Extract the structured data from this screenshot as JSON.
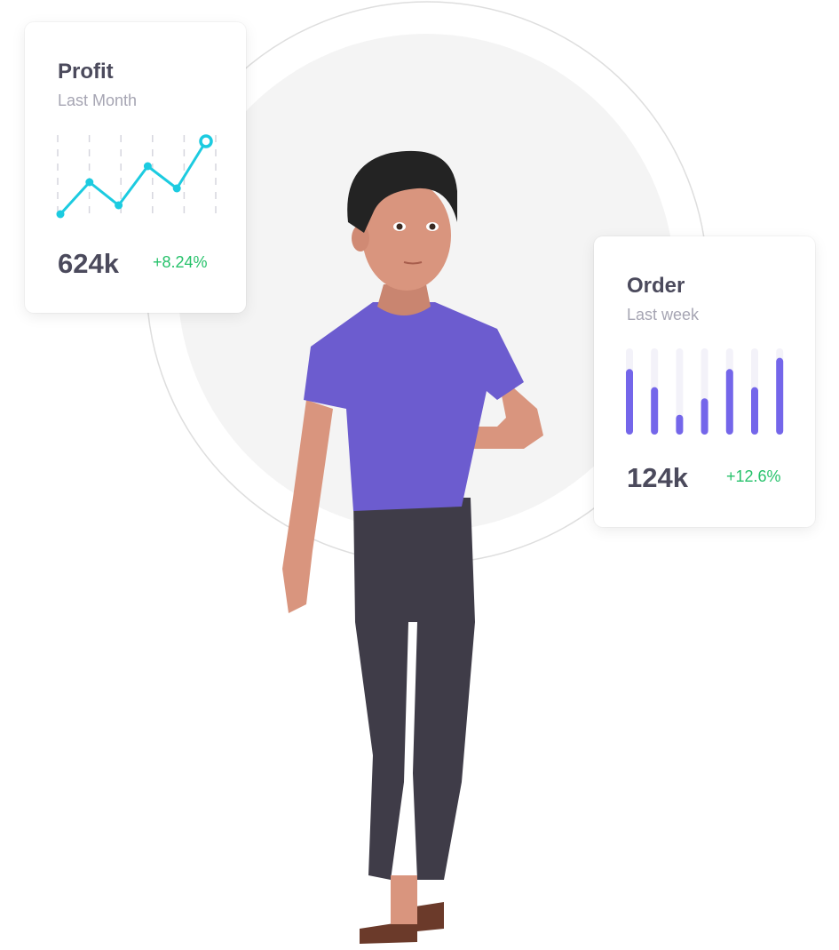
{
  "profit_card": {
    "title": "Profit",
    "subtitle": "Last Month",
    "value": "624k",
    "change": "+8.24%",
    "line_color": "#1ccbe0",
    "chart_data": {
      "type": "line",
      "values": [
        2,
        38,
        12,
        56,
        31,
        84
      ],
      "highlight_last_point": true,
      "grid": "vertical dashed"
    }
  },
  "order_card": {
    "title": "Order",
    "subtitle": "Last week",
    "value": "124k",
    "change": "+12.6%",
    "bar_color": "#7466ea",
    "track_color": "#f3f2f9",
    "chart_data": {
      "type": "bar",
      "values": [
        0.76,
        0.55,
        0.23,
        0.42,
        0.76,
        0.55,
        0.89
      ]
    }
  },
  "colors": {
    "positive": "#27c26b",
    "shirt": "#6c5ccf",
    "pants": "#3f3c48"
  }
}
